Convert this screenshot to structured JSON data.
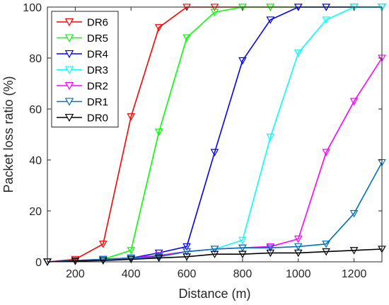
{
  "chart_data": {
    "type": "line",
    "xlabel": "Distance (m)",
    "ylabel": "Packet loss ratio (%)",
    "xlim": [
      100,
      1300
    ],
    "ylim": [
      0,
      100
    ],
    "xticks": [
      200,
      400,
      600,
      800,
      1000,
      1200
    ],
    "yticks": [
      0,
      20,
      40,
      60,
      80,
      100
    ],
    "grid": false,
    "legend_position": "top-left",
    "marker": "downward-triangle",
    "x": [
      100,
      200,
      300,
      400,
      500,
      600,
      700,
      800,
      900,
      1000,
      1100,
      1200,
      1300
    ],
    "series": [
      {
        "name": "DR6",
        "color": "#ff0000",
        "values": [
          0,
          1,
          7,
          57,
          92,
          100,
          100,
          100,
          100,
          100,
          100,
          100,
          100
        ]
      },
      {
        "name": "DR5",
        "color": "#00ff00",
        "values": [
          0,
          0.5,
          1,
          4.5,
          51,
          88,
          98,
          100,
          100,
          100,
          100,
          100,
          100
        ]
      },
      {
        "name": "DR4",
        "color": "#0000ff",
        "values": [
          0,
          0.5,
          1,
          1.5,
          3.5,
          6,
          43,
          79,
          95,
          100,
          100,
          100,
          100
        ]
      },
      {
        "name": "DR3",
        "color": "#00ffff",
        "values": [
          0,
          0.5,
          1,
          1.5,
          2.5,
          4,
          5,
          8.5,
          49,
          82,
          95,
          100,
          100
        ]
      },
      {
        "name": "DR2",
        "color": "#ff00ff",
        "values": [
          0,
          0.5,
          1,
          1.5,
          2.5,
          4,
          5,
          5.5,
          6,
          9,
          43,
          63,
          80
        ]
      },
      {
        "name": "DR1",
        "color": "#0072bd",
        "values": [
          0,
          0.5,
          1,
          1.5,
          2,
          4,
          5,
          5.5,
          5.5,
          6,
          7,
          19,
          39
        ]
      },
      {
        "name": "DR0",
        "color": "#000000",
        "values": [
          0,
          0.3,
          0.5,
          1,
          1.5,
          2,
          3,
          3,
          3.5,
          3.5,
          4,
          4.5,
          5
        ]
      }
    ]
  }
}
